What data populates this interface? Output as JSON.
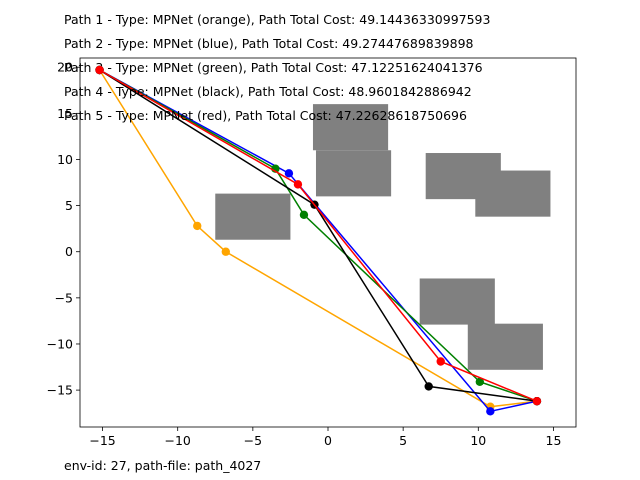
{
  "titles": [
    "Path 1 - Type: MPNet (orange), Path Total Cost: 49.14436330997593",
    "Path 2 - Type: MPNet (blue), Path Total Cost: 49.27447689839898",
    "Path 3 - Type: MPNet (green), Path Total Cost: 47.12251624041376",
    "Path 4 - Type: MPNet (black), Path Total Cost: 48.9601842886942",
    "Path 5 - Type: MPNet (red), Path Total Cost: 47.22628618750696"
  ],
  "footer": "env-id: 27, path-file: path_4027",
  "colors": {
    "orange": "#ffa500",
    "blue": "#0000ff",
    "green": "#008000",
    "black": "#000000",
    "red": "#ff0000",
    "obstacle": "#808080"
  },
  "chart_data": {
    "type": "line",
    "xlim": [
      -16.5,
      16.5
    ],
    "ylim": [
      -19,
      21
    ],
    "xticks": [
      -15,
      -10,
      -5,
      0,
      5,
      10,
      15
    ],
    "yticks": [
      -15,
      -10,
      -5,
      0,
      5,
      10,
      15,
      20
    ],
    "grid": false,
    "obstacles": [
      {
        "x0": -1.0,
        "x1": 4.0,
        "y0": 11.0,
        "y1": 16.0
      },
      {
        "x0": -0.8,
        "x1": 4.2,
        "y0": 6.0,
        "y1": 11.0
      },
      {
        "x0": 6.5,
        "x1": 11.5,
        "y0": 5.7,
        "y1": 10.7
      },
      {
        "x0": 9.8,
        "x1": 14.8,
        "y0": 3.8,
        "y1": 8.8
      },
      {
        "x0": -7.5,
        "x1": -2.5,
        "y0": 1.3,
        "y1": 6.3
      },
      {
        "x0": 6.1,
        "x1": 11.1,
        "y0": -7.9,
        "y1": -2.9
      },
      {
        "x0": 9.3,
        "x1": 14.3,
        "y0": -12.8,
        "y1": -7.8
      }
    ],
    "series": [
      {
        "name": "orange",
        "color": "orange",
        "x": [
          -15.2,
          -8.7,
          -6.8,
          10.8,
          13.9
        ],
        "y": [
          19.7,
          2.8,
          0.0,
          -16.8,
          -16.2
        ]
      },
      {
        "name": "blue",
        "color": "blue",
        "x": [
          -15.2,
          -2.6,
          10.8,
          13.9
        ],
        "y": [
          19.7,
          8.5,
          -17.3,
          -16.2
        ]
      },
      {
        "name": "green",
        "color": "green",
        "x": [
          -15.2,
          -3.5,
          -1.6,
          10.1,
          13.9
        ],
        "y": [
          19.7,
          9.0,
          4.0,
          -14.1,
          -16.2
        ]
      },
      {
        "name": "black",
        "color": "black",
        "x": [
          -15.2,
          -0.9,
          6.7,
          13.9
        ],
        "y": [
          19.7,
          5.1,
          -14.6,
          -16.2
        ]
      },
      {
        "name": "red",
        "color": "red",
        "x": [
          -15.2,
          -2.0,
          7.5,
          13.9
        ],
        "y": [
          19.7,
          7.3,
          -11.9,
          -16.2
        ]
      }
    ]
  }
}
